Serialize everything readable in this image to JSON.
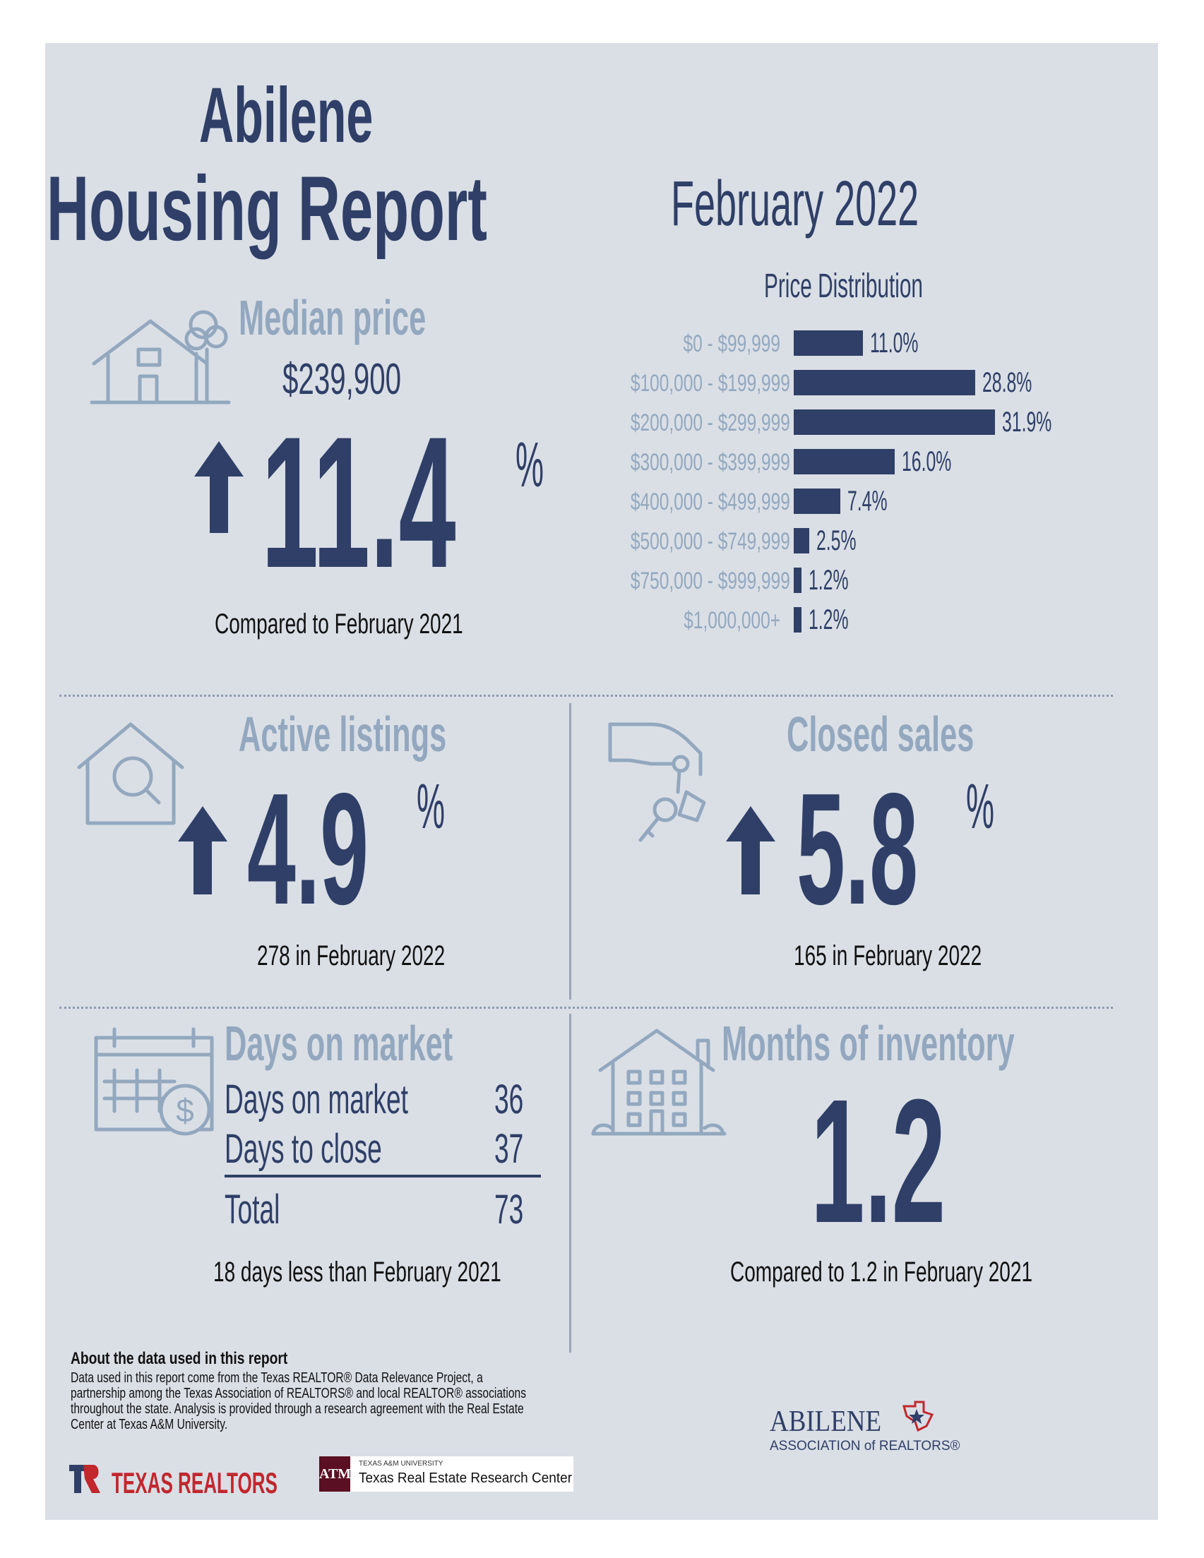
{
  "header": {
    "city": "Abilene",
    "title": "Housing Report",
    "period": "February 2022"
  },
  "median_price": {
    "heading": "Median price",
    "value": "$239,900",
    "change": "11.4",
    "unit": "%",
    "direction": "up",
    "caption": "Compared to February 2021"
  },
  "price_distribution": {
    "title": "Price Distribution",
    "rows": [
      {
        "label": "$0 - $99,999",
        "value": "11.0%"
      },
      {
        "label": "$100,000 - $199,999",
        "value": "28.8%"
      },
      {
        "label": "$200,000 - $299,999",
        "value": "31.9%"
      },
      {
        "label": "$300,000 - $399,999",
        "value": "16.0%"
      },
      {
        "label": "$400,000 - $499,999",
        "value": "7.4%"
      },
      {
        "label": "$500,000 - $749,999",
        "value": "2.5%"
      },
      {
        "label": "$750,000 - $999,999",
        "value": "1.2%"
      },
      {
        "label": "$1,000,000+",
        "value": "1.2%"
      }
    ]
  },
  "chart_data": {
    "type": "bar",
    "title": "Price Distribution",
    "orientation": "horizontal",
    "categories": [
      "$0 - $99,999",
      "$100,000 - $199,999",
      "$200,000 - $299,999",
      "$300,000 - $399,999",
      "$400,000 - $499,999",
      "$500,000 - $749,999",
      "$750,000 - $999,999",
      "$1,000,000+"
    ],
    "values": [
      11.0,
      28.8,
      31.9,
      16.0,
      7.4,
      2.5,
      1.2,
      1.2
    ],
    "unit": "%",
    "color": "#2f3f67"
  },
  "active_listings": {
    "heading": "Active listings",
    "change": "4.9",
    "unit": "%",
    "direction": "up",
    "caption": "278 in February 2022"
  },
  "closed_sales": {
    "heading": "Closed sales",
    "change": "5.8",
    "unit": "%",
    "direction": "up",
    "caption": "165 in February 2022"
  },
  "days_on_market": {
    "heading": "Days on market",
    "rows": [
      {
        "label": "Days on market",
        "value": "36"
      },
      {
        "label": "Days to close",
        "value": "37"
      }
    ],
    "total_label": "Total",
    "total_value": "73",
    "caption": "18 days less than February 2021"
  },
  "months_inventory": {
    "heading": "Months of inventory",
    "value": "1.2",
    "caption": "Compared to 1.2 in February 2021"
  },
  "footer": {
    "heading": "About the data used in this report",
    "body": "Data used in this report come from the Texas REALTOR® Data Relevance Project, a partnership among the Texas Association of REALTORS® and local REALTOR® associations throughout the state. Analysis is provided through a research agreement with the Real Estate Center at Texas A&M University.",
    "texas_realtors_logo": "TEXAS REALTORS",
    "tamu_small": "TEXAS A&M UNIVERSITY",
    "tamu_center": "Texas Real Estate Research Center",
    "abilene_logo_main": "ABILENE",
    "abilene_logo_sub": "ASSOCIATION of REALTORS®"
  },
  "colors": {
    "navy": "#2f3f67",
    "grey_blue": "#93a8bf",
    "panel": "#dadfe6",
    "red": "#c1272d"
  }
}
